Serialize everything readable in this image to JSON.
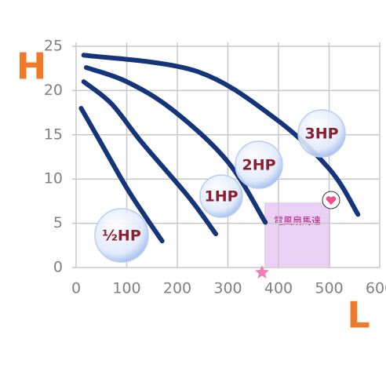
{
  "chart_data": {
    "type": "line",
    "xlabel": "L",
    "ylabel": "H",
    "xlim": [
      0,
      600
    ],
    "ylim": [
      0,
      25
    ],
    "xticks": [
      0,
      100,
      200,
      300,
      400,
      500,
      600
    ],
    "yticks": [
      0,
      5,
      10,
      15,
      20,
      25
    ],
    "grid": true,
    "series": [
      {
        "name": "½HP",
        "color": "#15357a",
        "x": [
          10,
          50,
          100,
          140,
          170
        ],
        "values": [
          18,
          14,
          9,
          5.5,
          3
        ]
      },
      {
        "name": "1HP",
        "color": "#15357a",
        "x": [
          15,
          70,
          129,
          222,
          276
        ],
        "values": [
          21,
          18.5,
          14.2,
          8,
          3.8
        ]
      },
      {
        "name": "2HP",
        "color": "#15357a",
        "x": [
          20,
          100,
          191,
          299,
          374
        ],
        "values": [
          22.6,
          21,
          17.8,
          12,
          5.1
        ]
      },
      {
        "name": "3HP",
        "color": "#15357a",
        "x": [
          15,
          237,
          392,
          501,
          557
        ],
        "values": [
          24,
          22.2,
          16.9,
          11.1,
          6
        ]
      }
    ],
    "box_label": "電風扇馬達"
  }
}
